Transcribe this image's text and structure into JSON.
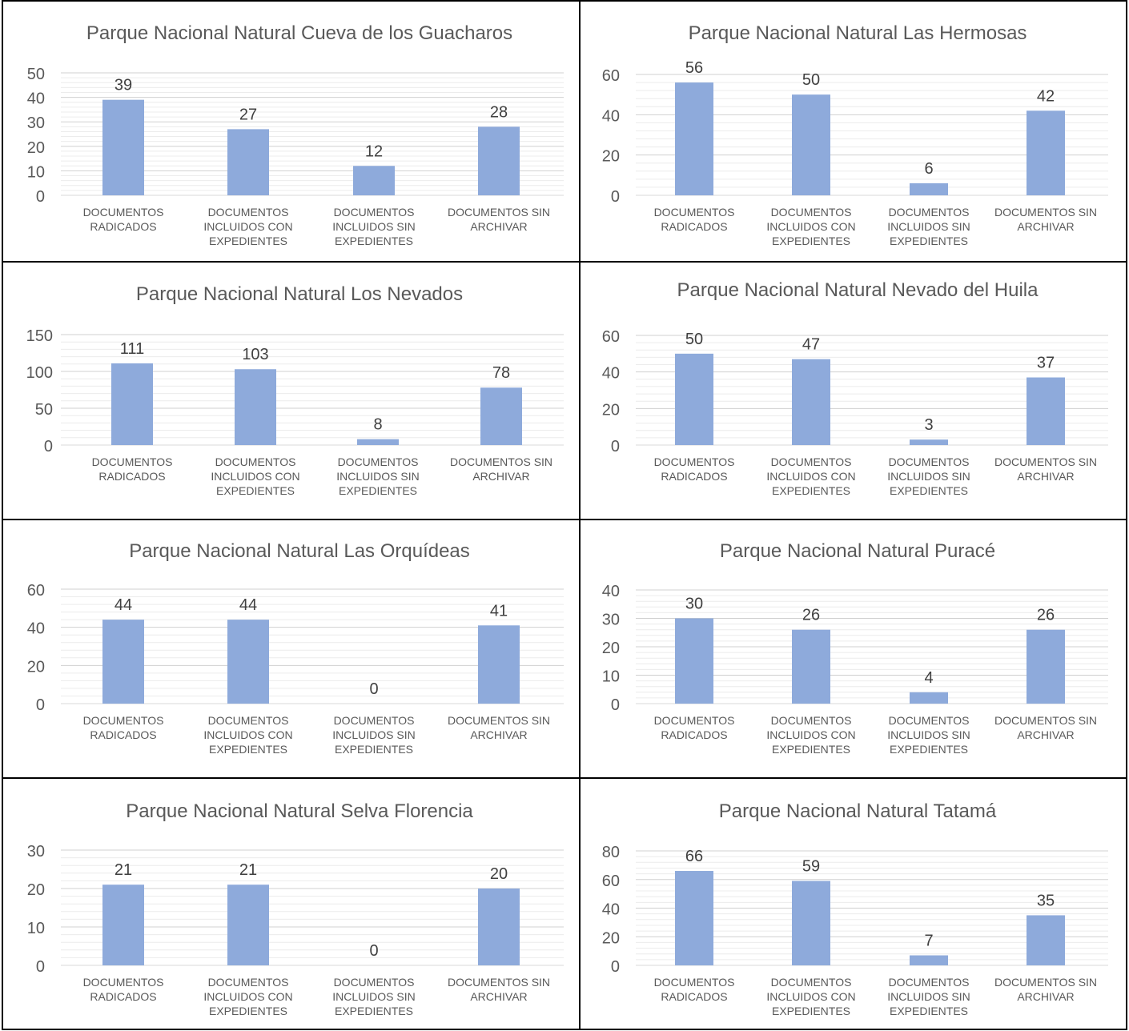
{
  "page": {
    "bar_color": "#8eaadb",
    "axis_text_color": "#595959",
    "gridline_color": "#d9d9d9",
    "border_color": "#000000"
  },
  "chart_data": [
    {
      "type": "bar",
      "title": "Parque Nacional Natural Cueva de los Guacharos",
      "categories": [
        [
          "DOCUMENTOS",
          "RADICADOS"
        ],
        [
          "DOCUMENTOS",
          "INCLUIDOS CON",
          "EXPEDIENTES"
        ],
        [
          "DOCUMENTOS",
          "INCLUIDOS SIN",
          "EXPEDIENTES"
        ],
        [
          "DOCUMENTOS SIN",
          "ARCHIVAR"
        ]
      ],
      "values": [
        39,
        27,
        12,
        28
      ],
      "ylim": [
        0,
        50
      ],
      "yticks": [
        0,
        10,
        20,
        30,
        40,
        50
      ],
      "grid": true
    },
    {
      "type": "bar",
      "title": "Parque Nacional Natural Las Hermosas",
      "categories": [
        [
          "DOCUMENTOS",
          "RADICADOS"
        ],
        [
          "DOCUMENTOS",
          "INCLUIDOS CON",
          "EXPEDIENTES"
        ],
        [
          "DOCUMENTOS",
          "INCLUIDOS SIN",
          "EXPEDIENTES"
        ],
        [
          "DOCUMENTOS SIN",
          "ARCHIVAR"
        ]
      ],
      "values": [
        56,
        50,
        6,
        42
      ],
      "ylim": [
        0,
        60
      ],
      "yticks": [
        0,
        20,
        40,
        60
      ],
      "grid": true
    },
    {
      "type": "bar",
      "title": "Parque Nacional Natural Los Nevados",
      "categories": [
        [
          "DOCUMENTOS",
          "RADICADOS"
        ],
        [
          "DOCUMENTOS",
          "INCLUIDOS CON",
          "EXPEDIENTES"
        ],
        [
          "DOCUMENTOS",
          "INCLUIDOS SIN",
          "EXPEDIENTES"
        ],
        [
          "DOCUMENTOS SIN",
          "ARCHIVAR"
        ]
      ],
      "values": [
        111,
        103,
        8,
        78
      ],
      "ylim": [
        0,
        150
      ],
      "yticks": [
        0,
        50,
        100,
        150
      ],
      "grid": true
    },
    {
      "type": "bar",
      "title": "Parque Nacional Natural Nevado del Huila",
      "categories": [
        [
          "DOCUMENTOS",
          "RADICADOS"
        ],
        [
          "DOCUMENTOS",
          "INCLUIDOS CON",
          "EXPEDIENTES"
        ],
        [
          "DOCUMENTOS",
          "INCLUIDOS SIN",
          "EXPEDIENTES"
        ],
        [
          "DOCUMENTOS SIN",
          "ARCHIVAR"
        ]
      ],
      "values": [
        50,
        47,
        3,
        37
      ],
      "ylim": [
        0,
        60
      ],
      "yticks": [
        0,
        20,
        40,
        60
      ],
      "grid": true
    },
    {
      "type": "bar",
      "title": "Parque Nacional Natural Las Orquídeas",
      "categories": [
        [
          "DOCUMENTOS",
          "RADICADOS"
        ],
        [
          "DOCUMENTOS",
          "INCLUIDOS CON",
          "EXPEDIENTES"
        ],
        [
          "DOCUMENTOS",
          "INCLUIDOS SIN",
          "EXPEDIENTES"
        ],
        [
          "DOCUMENTOS SIN",
          "ARCHIVAR"
        ]
      ],
      "values": [
        44,
        44,
        0,
        41
      ],
      "ylim": [
        0,
        60
      ],
      "yticks": [
        0,
        20,
        40,
        60
      ],
      "grid": true
    },
    {
      "type": "bar",
      "title": "Parque Nacional Natural Puracé",
      "categories": [
        [
          "DOCUMENTOS",
          "RADICADOS"
        ],
        [
          "DOCUMENTOS",
          "INCLUIDOS CON",
          "EXPEDIENTES"
        ],
        [
          "DOCUMENTOS",
          "INCLUIDOS SIN",
          "EXPEDIENTES"
        ],
        [
          "DOCUMENTOS SIN",
          "ARCHIVAR"
        ]
      ],
      "values": [
        30,
        26,
        4,
        26
      ],
      "ylim": [
        0,
        40
      ],
      "yticks": [
        0,
        10,
        20,
        30,
        40
      ],
      "grid": true
    },
    {
      "type": "bar",
      "title": "Parque Nacional Natural Selva Florencia",
      "categories": [
        [
          "DOCUMENTOS",
          "RADICADOS"
        ],
        [
          "DOCUMENTOS",
          "INCLUIDOS CON",
          "EXPEDIENTES"
        ],
        [
          "DOCUMENTOS",
          "INCLUIDOS SIN",
          "EXPEDIENTES"
        ],
        [
          "DOCUMENTOS SIN",
          "ARCHIVAR"
        ]
      ],
      "values": [
        21,
        21,
        0,
        20
      ],
      "ylim": [
        0,
        30
      ],
      "yticks": [
        0,
        10,
        20,
        30
      ],
      "grid": true
    },
    {
      "type": "bar",
      "title": "Parque Nacional Natural Tatamá",
      "categories": [
        [
          "DOCUMENTOS",
          "RADICADOS"
        ],
        [
          "DOCUMENTOS",
          "INCLUIDOS CON",
          "EXPEDIENTES"
        ],
        [
          "DOCUMENTOS",
          "INCLUIDOS SIN",
          "EXPEDIENTES"
        ],
        [
          "DOCUMENTOS SIN",
          "ARCHIVAR"
        ]
      ],
      "values": [
        66,
        59,
        7,
        35
      ],
      "ylim": [
        0,
        80
      ],
      "yticks": [
        0,
        20,
        40,
        60,
        80
      ],
      "grid": true
    }
  ]
}
